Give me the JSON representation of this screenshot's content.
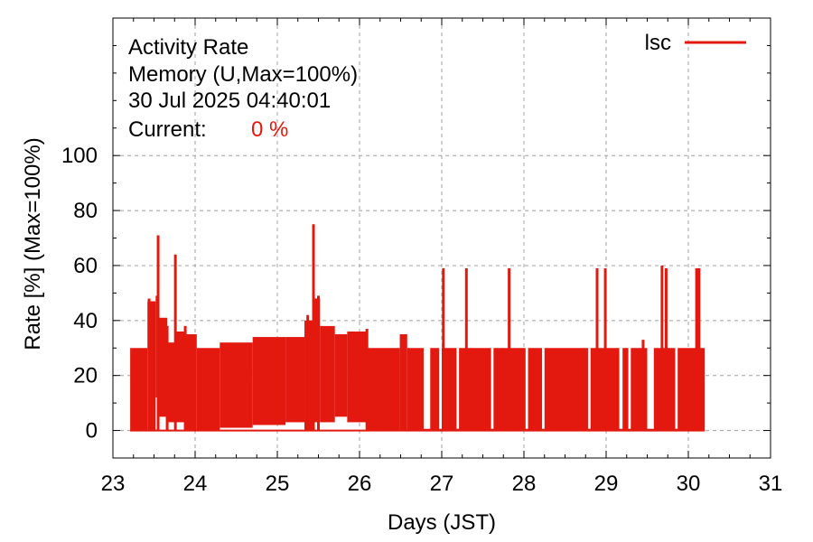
{
  "chart_data": {
    "type": "line",
    "header": {
      "line1": "Activity Rate",
      "line2": "Memory (U,Max=100%)",
      "line3": "30 Jul 2025 04:40:01",
      "current_label": "Current:",
      "current_value": "0 %"
    },
    "xlabel": "Days (JST)",
    "ylabel": "Rate [%]  (Max=100%)",
    "xlim": [
      23,
      31
    ],
    "ylim": [
      -10,
      150
    ],
    "xticks": [
      23,
      24,
      25,
      26,
      27,
      28,
      29,
      30,
      31
    ],
    "yticks": [
      0,
      20,
      40,
      60,
      80,
      100
    ],
    "xtick_labels": [
      "23",
      "24",
      "25",
      "26",
      "27",
      "28",
      "29",
      "30",
      "31"
    ],
    "ytick_labels": [
      "0",
      "20",
      "40",
      "60",
      "80",
      "100"
    ],
    "grid": true,
    "legend_position": "top-right",
    "colors": {
      "series": "#e3190f",
      "current": "#e3190f",
      "grid": "#a0a0a0",
      "axis": "#000000"
    },
    "series": [
      {
        "name": "lsc",
        "segments": [
          {
            "x0": 23.21,
            "x1": 23.42,
            "lo": 0,
            "hi": 30
          },
          {
            "x0": 23.42,
            "x1": 23.52,
            "lo": 0,
            "hi": 47
          },
          {
            "x0": 23.52,
            "x1": 23.56,
            "lo": 12,
            "hi": 49
          },
          {
            "x0": 23.56,
            "x1": 23.66,
            "lo": 5,
            "hi": 41
          },
          {
            "x0": 23.66,
            "x1": 23.76,
            "lo": 3,
            "hi": 32
          },
          {
            "x0": 23.76,
            "x1": 23.87,
            "lo": 3,
            "hi": 36
          },
          {
            "x0": 23.87,
            "x1": 24.02,
            "lo": 0,
            "hi": 35
          },
          {
            "x0": 24.02,
            "x1": 24.3,
            "lo": 0,
            "hi": 30
          },
          {
            "x0": 24.3,
            "x1": 24.7,
            "lo": 1,
            "hi": 32
          },
          {
            "x0": 24.7,
            "x1": 25.1,
            "lo": 2,
            "hi": 34
          },
          {
            "x0": 25.1,
            "x1": 25.33,
            "lo": 3,
            "hi": 34
          },
          {
            "x0": 25.33,
            "x1": 25.45,
            "lo": 0,
            "hi": 40
          },
          {
            "x0": 25.45,
            "x1": 25.52,
            "lo": 3,
            "hi": 48
          },
          {
            "x0": 25.52,
            "x1": 25.7,
            "lo": 3,
            "hi": 38
          },
          {
            "x0": 25.7,
            "x1": 25.85,
            "lo": 5,
            "hi": 35
          },
          {
            "x0": 25.85,
            "x1": 26.08,
            "lo": 3,
            "hi": 36
          },
          {
            "x0": 26.08,
            "x1": 26.49,
            "lo": 0,
            "hi": 30
          },
          {
            "x0": 26.49,
            "x1": 26.58,
            "lo": 0,
            "hi": 35
          },
          {
            "x0": 26.58,
            "x1": 27.5,
            "lo": 0,
            "hi": 30
          },
          {
            "x0": 27.5,
            "x1": 28.0,
            "lo": 0,
            "hi": 30
          },
          {
            "x0": 28.0,
            "x1": 28.5,
            "lo": 0,
            "hi": 30
          },
          {
            "x0": 28.5,
            "x1": 29.0,
            "lo": 0,
            "hi": 30
          },
          {
            "x0": 29.0,
            "x1": 29.5,
            "lo": 0,
            "hi": 30
          },
          {
            "x0": 29.5,
            "x1": 30.0,
            "lo": 0,
            "hi": 30
          },
          {
            "x0": 30.0,
            "x1": 30.2,
            "lo": 0,
            "hi": 30
          }
        ],
        "peaks": [
          {
            "x": 23.44,
            "y": 48
          },
          {
            "x": 23.55,
            "y": 71
          },
          {
            "x": 23.66,
            "y": 38
          },
          {
            "x": 23.76,
            "y": 64
          },
          {
            "x": 23.88,
            "y": 38
          },
          {
            "x": 25.37,
            "y": 42
          },
          {
            "x": 25.44,
            "y": 75
          },
          {
            "x": 25.5,
            "y": 49
          },
          {
            "x": 26.09,
            "y": 37
          },
          {
            "x": 26.55,
            "y": 34
          },
          {
            "x": 27.02,
            "y": 59
          },
          {
            "x": 27.3,
            "y": 59
          },
          {
            "x": 27.82,
            "y": 59
          },
          {
            "x": 28.89,
            "y": 59
          },
          {
            "x": 28.99,
            "y": 59
          },
          {
            "x": 29.45,
            "y": 33
          },
          {
            "x": 29.68,
            "y": 60
          },
          {
            "x": 29.73,
            "y": 59
          },
          {
            "x": 30.1,
            "y": 59
          },
          {
            "x": 30.13,
            "y": 59
          }
        ],
        "gaps": [
          {
            "x0": 26.78,
            "x1": 26.86
          },
          {
            "x0": 26.97,
            "x1": 27.0
          },
          {
            "x0": 27.18,
            "x1": 27.21
          },
          {
            "x0": 27.6,
            "x1": 27.63
          },
          {
            "x0": 28.02,
            "x1": 28.05
          },
          {
            "x0": 28.22,
            "x1": 28.25
          },
          {
            "x0": 28.78,
            "x1": 28.81
          },
          {
            "x0": 29.16,
            "x1": 29.2
          },
          {
            "x0": 29.27,
            "x1": 29.3
          },
          {
            "x0": 29.5,
            "x1": 29.58
          },
          {
            "x0": 29.84,
            "x1": 29.87
          }
        ]
      }
    ]
  }
}
